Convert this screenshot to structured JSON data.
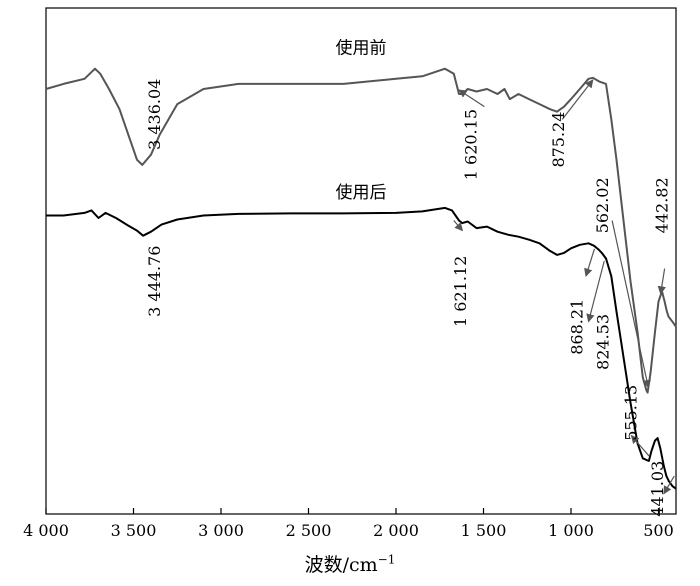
{
  "chart_data": {
    "type": "line",
    "xlabel": "波数/cm",
    "xlabel_exponent": "−1",
    "ylabel": "",
    "x_reversed": true,
    "xlim": [
      4000,
      400
    ],
    "x_ticks": [
      {
        "value": 4000,
        "label": "4 000"
      },
      {
        "value": 3500,
        "label": "3 500"
      },
      {
        "value": 3000,
        "label": "3 000"
      },
      {
        "value": 2500,
        "label": "2 500"
      },
      {
        "value": 2000,
        "label": "2 000"
      },
      {
        "value": 1500,
        "label": "1 500"
      },
      {
        "value": 1000,
        "label": "1 000"
      },
      {
        "value": 500,
        "label": "500"
      }
    ],
    "ylim": [
      0,
      100
    ],
    "grid": false,
    "series": [
      {
        "name": "使用前",
        "color": "#555555",
        "label_at": [
          2200,
          91
        ],
        "points": [
          [
            4000,
            84
          ],
          [
            3900,
            85
          ],
          [
            3780,
            86
          ],
          [
            3720,
            88
          ],
          [
            3690,
            87
          ],
          [
            3640,
            84
          ],
          [
            3580,
            80
          ],
          [
            3520,
            74
          ],
          [
            3480,
            70
          ],
          [
            3450,
            69
          ],
          [
            3400,
            71
          ],
          [
            3350,
            75
          ],
          [
            3250,
            81
          ],
          [
            3100,
            84
          ],
          [
            2900,
            85
          ],
          [
            2600,
            85
          ],
          [
            2300,
            85
          ],
          [
            2000,
            86
          ],
          [
            1850,
            86.5
          ],
          [
            1720,
            88
          ],
          [
            1670,
            87
          ],
          [
            1640,
            83
          ],
          [
            1620,
            83
          ],
          [
            1590,
            84
          ],
          [
            1540,
            83.5
          ],
          [
            1480,
            84
          ],
          [
            1420,
            83
          ],
          [
            1380,
            84
          ],
          [
            1350,
            82
          ],
          [
            1300,
            83
          ],
          [
            1240,
            82
          ],
          [
            1180,
            81
          ],
          [
            1120,
            80
          ],
          [
            1080,
            79.5
          ],
          [
            1040,
            80.5
          ],
          [
            1000,
            82
          ],
          [
            950,
            84
          ],
          [
            900,
            86
          ],
          [
            875,
            86.2
          ],
          [
            840,
            85.5
          ],
          [
            800,
            85
          ],
          [
            770,
            78
          ],
          [
            740,
            70
          ],
          [
            700,
            58
          ],
          [
            660,
            46
          ],
          [
            620,
            36
          ],
          [
            590,
            27
          ],
          [
            570,
            24.5
          ],
          [
            562,
            24
          ],
          [
            545,
            28
          ],
          [
            520,
            36
          ],
          [
            500,
            42
          ],
          [
            480,
            44
          ],
          [
            465,
            42
          ],
          [
            452,
            40
          ],
          [
            442,
            39
          ],
          [
            420,
            38
          ],
          [
            400,
            37
          ]
        ]
      },
      {
        "name": "使用后",
        "color": "#000000",
        "label_at": [
          2200,
          62.5
        ],
        "points": [
          [
            4000,
            59
          ],
          [
            3900,
            59
          ],
          [
            3780,
            59.5
          ],
          [
            3740,
            60
          ],
          [
            3700,
            58.5
          ],
          [
            3660,
            59.5
          ],
          [
            3600,
            58.5
          ],
          [
            3530,
            57
          ],
          [
            3480,
            56
          ],
          [
            3445,
            55
          ],
          [
            3400,
            55.8
          ],
          [
            3340,
            57.2
          ],
          [
            3250,
            58.2
          ],
          [
            3100,
            59
          ],
          [
            2900,
            59.3
          ],
          [
            2600,
            59.4
          ],
          [
            2300,
            59.4
          ],
          [
            2000,
            59.5
          ],
          [
            1850,
            59.8
          ],
          [
            1720,
            60.5
          ],
          [
            1680,
            60
          ],
          [
            1640,
            58
          ],
          [
            1621,
            57.5
          ],
          [
            1590,
            57.8
          ],
          [
            1540,
            56.5
          ],
          [
            1480,
            56.8
          ],
          [
            1420,
            55.8
          ],
          [
            1360,
            55.2
          ],
          [
            1300,
            54.8
          ],
          [
            1240,
            54.2
          ],
          [
            1180,
            53.5
          ],
          [
            1120,
            52
          ],
          [
            1080,
            51.2
          ],
          [
            1040,
            51.6
          ],
          [
            1000,
            52.5
          ],
          [
            950,
            53.2
          ],
          [
            900,
            53.5
          ],
          [
            868,
            53
          ],
          [
            840,
            52.2
          ],
          [
            824,
            51.6
          ],
          [
            800,
            50.5
          ],
          [
            770,
            47
          ],
          [
            740,
            40
          ],
          [
            700,
            31
          ],
          [
            660,
            22
          ],
          [
            620,
            14
          ],
          [
            590,
            11
          ],
          [
            570,
            10.7
          ],
          [
            555,
            10.5
          ],
          [
            540,
            12.5
          ],
          [
            520,
            14.5
          ],
          [
            505,
            15
          ],
          [
            490,
            13
          ],
          [
            470,
            9.5
          ],
          [
            455,
            7.5
          ],
          [
            441,
            6.5
          ],
          [
            420,
            5.5
          ],
          [
            400,
            5
          ]
        ]
      }
    ],
    "annotations": [
      {
        "text": "3 436.04",
        "x": 3375,
        "y": 79,
        "rotate": -90
      },
      {
        "text": "1 620.15",
        "x": 1565,
        "y": 73,
        "rotate": -90,
        "arrow_from": [
          1495,
          80.5
        ],
        "arrow_to": [
          1640,
          83.8
        ]
      },
      {
        "text": "875.24",
        "x": 1065,
        "y": 74,
        "rotate": -90,
        "arrow_from": [
          1050,
          78
        ],
        "arrow_to": [
          875,
          85.8
        ]
      },
      {
        "text": "3 444.76",
        "x": 3375,
        "y": 46,
        "rotate": -90
      },
      {
        "text": "1 621.12",
        "x": 1625,
        "y": 44,
        "rotate": -90,
        "arrow_from": [
          1670,
          58
        ],
        "arrow_to": [
          1620,
          56
        ]
      },
      {
        "text": "868.21",
        "x": 960,
        "y": 37,
        "rotate": -90,
        "arrow_from": [
          866,
          52.4
        ],
        "arrow_to": [
          915,
          47
        ]
      },
      {
        "text": "824.53",
        "x": 810,
        "y": 34,
        "rotate": -90,
        "arrow_from": [
          810,
          50
        ],
        "arrow_to": [
          900,
          38
        ]
      },
      {
        "text": "562.02",
        "x": 815,
        "y": 61,
        "rotate": -90,
        "arrow_from": [
          765,
          58
        ],
        "arrow_to": [
          558,
          25
        ]
      },
      {
        "text": "442.82",
        "x": 475,
        "y": 61,
        "rotate": -90,
        "arrow_from": [
          465,
          48.5
        ],
        "arrow_to": [
          488,
          43.5
        ]
      },
      {
        "text": "555.13",
        "x": 650,
        "y": 20,
        "rotate": -90,
        "arrow_from": [
          555,
          11.5
        ],
        "arrow_to": [
          655,
          15.5
        ]
      },
      {
        "text": "441.03",
        "x": 500,
        "y": 5,
        "rotate": -90,
        "arrow_from": [
          410,
          7.5
        ],
        "arrow_to": [
          470,
          4
        ]
      }
    ]
  }
}
